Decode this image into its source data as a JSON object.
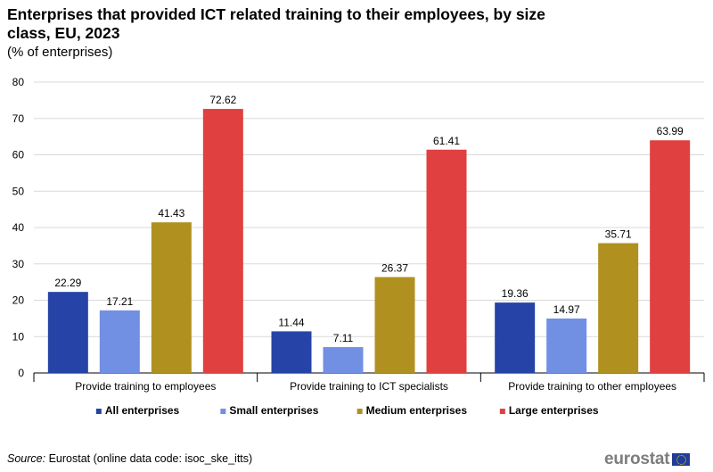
{
  "header": {
    "title": "Enterprises that provided ICT related training to their employees, by size class, EU, 2023",
    "subtitle": "(% of enterprises)"
  },
  "footer": {
    "source_label": "Source:",
    "source_text": "Eurostat (online data code: isoc_ske_itts)",
    "logo_text": "eurostat"
  },
  "chart_data": {
    "type": "bar",
    "title": "Enterprises that provided ICT related training to their employees, by size class, EU, 2023",
    "subtitle": "(% of enterprises)",
    "categories": [
      "Provide training to employees",
      "Provide training to ICT specialists",
      "Provide training to other employees"
    ],
    "series": [
      {
        "name": "All enterprises",
        "color": "#2644a7",
        "values": [
          22.29,
          11.44,
          19.36
        ]
      },
      {
        "name": "Small enterprises",
        "color": "#7190e3",
        "values": [
          17.21,
          7.11,
          14.97
        ]
      },
      {
        "name": "Medium enterprises",
        "color": "#b09120",
        "values": [
          41.43,
          26.37,
          35.71
        ]
      },
      {
        "name": "Large enterprises",
        "color": "#e04040",
        "values": [
          72.62,
          61.41,
          63.99
        ]
      }
    ],
    "ylim": [
      0,
      80
    ],
    "yticks": [
      0,
      10,
      20,
      30,
      40,
      50,
      60,
      70,
      80
    ],
    "grid": true,
    "legend_position": "bottom",
    "xlabel": "",
    "ylabel": ""
  }
}
